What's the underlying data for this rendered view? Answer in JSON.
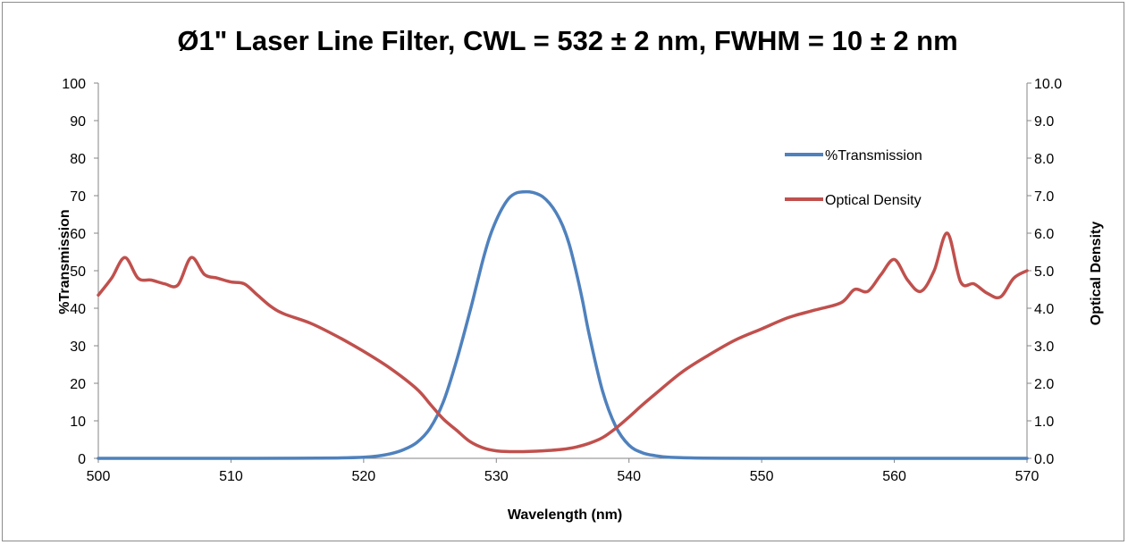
{
  "chart_data": {
    "type": "line",
    "title": "Ø1\" Laser Line Filter, CWL = 532 ± 2 nm, FWHM = 10 ± 2 nm",
    "xlabel": "Wavelength (nm)",
    "ylabel": "%Transmission",
    "y2label": "Optical Density",
    "xlim": [
      500,
      570
    ],
    "ylim": [
      0,
      100
    ],
    "y2lim": [
      0,
      10
    ],
    "x_ticks": [
      "500",
      "510",
      "520",
      "530",
      "540",
      "550",
      "560",
      "570"
    ],
    "y_ticks": [
      "0",
      "10",
      "20",
      "30",
      "40",
      "50",
      "60",
      "70",
      "80",
      "90",
      "100"
    ],
    "y2_ticks": [
      "0.0",
      "1.0",
      "2.0",
      "3.0",
      "4.0",
      "5.0",
      "6.0",
      "7.0",
      "8.0",
      "9.0",
      "10.0"
    ],
    "grid": false,
    "legend_position": "upper-right",
    "series": [
      {
        "name": "%Transmission",
        "axis": "left",
        "color": "#4f81bd",
        "x": [
          500,
          505,
          510,
          515,
          518,
          520,
          521,
          522,
          523,
          524,
          525,
          526,
          527,
          528,
          528.5,
          529,
          529.5,
          530,
          530.5,
          531,
          531.5,
          532,
          532.5,
          533,
          533.5,
          534,
          534.5,
          535,
          535.5,
          536,
          536.5,
          537,
          538,
          539,
          540,
          541,
          542,
          543,
          545,
          547,
          550,
          555,
          560,
          565,
          570
        ],
        "y": [
          0,
          0,
          0,
          0.02,
          0.1,
          0.3,
          0.6,
          1.2,
          2.3,
          4.2,
          8,
          15,
          26,
          39,
          46,
          53,
          59,
          63.5,
          67,
          69.5,
          70.7,
          71,
          71,
          70.6,
          69.7,
          68,
          65.5,
          62,
          57,
          50,
          42,
          33,
          18,
          8.5,
          3.5,
          1.5,
          0.7,
          0.3,
          0.1,
          0.03,
          0.01,
          0,
          0,
          0,
          0
        ]
      },
      {
        "name": "Optical Density",
        "axis": "right",
        "color": "#c0504d",
        "x": [
          500,
          501,
          502,
          503,
          504,
          505,
          506,
          507,
          508,
          509,
          510,
          511,
          512,
          513,
          514,
          516,
          518,
          520,
          522,
          524,
          525,
          526,
          527,
          528,
          529,
          530,
          531,
          532,
          533,
          534,
          535,
          536,
          537,
          538,
          539,
          540,
          541,
          542,
          544,
          546,
          548,
          550,
          552,
          554,
          556,
          557,
          558,
          559,
          560,
          561,
          562,
          563,
          564,
          565,
          566,
          567,
          568,
          569,
          570
        ],
        "y": [
          4.35,
          4.8,
          5.35,
          4.8,
          4.75,
          4.65,
          4.62,
          5.35,
          4.9,
          4.8,
          4.7,
          4.65,
          4.35,
          4.05,
          3.85,
          3.6,
          3.25,
          2.85,
          2.4,
          1.85,
          1.45,
          1.05,
          0.75,
          0.45,
          0.28,
          0.2,
          0.18,
          0.18,
          0.19,
          0.21,
          0.24,
          0.3,
          0.4,
          0.55,
          0.8,
          1.1,
          1.42,
          1.72,
          2.3,
          2.75,
          3.15,
          3.45,
          3.75,
          3.95,
          4.15,
          4.5,
          4.45,
          4.9,
          5.3,
          4.75,
          4.45,
          5.0,
          6.0,
          4.7,
          4.65,
          4.4,
          4.3,
          4.8,
          5.0
        ]
      }
    ]
  }
}
